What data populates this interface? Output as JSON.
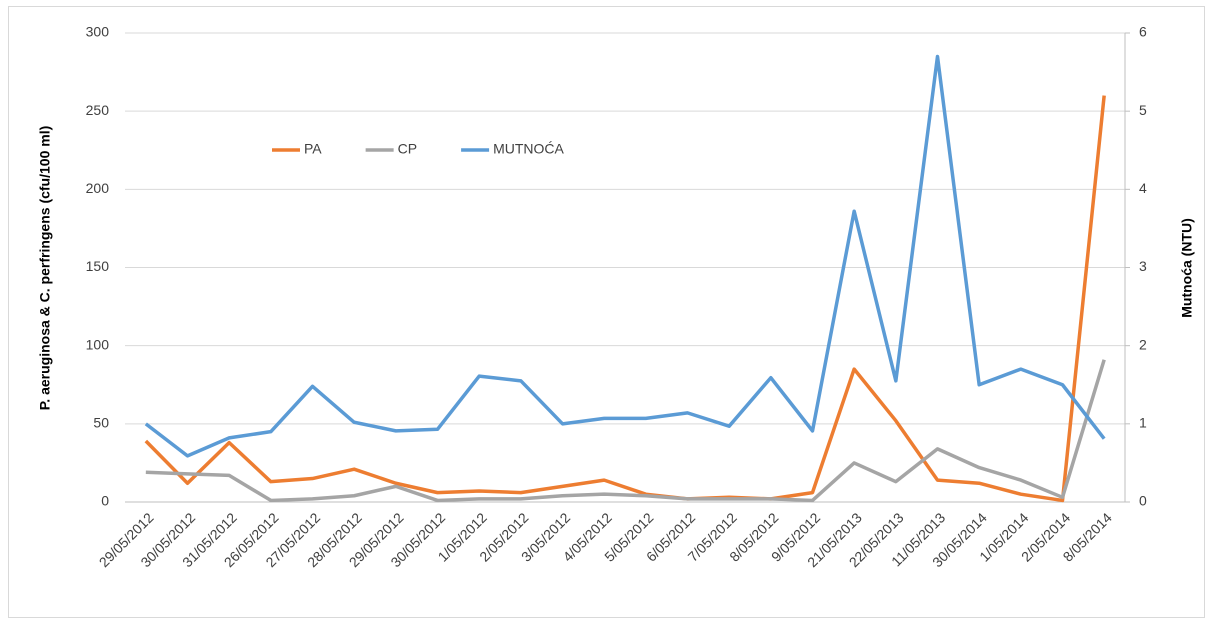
{
  "chart_data": {
    "type": "line",
    "y_label": "P. aeruginosa  & C. perfringens (cfu/100 ml)",
    "y2_label": "Mutnoća  (NTU)",
    "categories": [
      "29/05/2012",
      "30/05/2012",
      "31/05/2012",
      "26/05/2012",
      "27/05/2012",
      "28/05/2012",
      "29/05/2012",
      "30/05/2012",
      "1/05/2012",
      "2/05/2012",
      "3/05/2012",
      "4/05/2012",
      "5/05/2012",
      "6/05/2012",
      "7/05/2012",
      "8/05/2012",
      "9/05/2012",
      "21/05/2013",
      "22/05/2013",
      "11/05/2013",
      "30/05/2014",
      "1/05/2014",
      "2/05/2014",
      "8/05/2014"
    ],
    "series": [
      {
        "name": "PA",
        "color": "#ed7d31",
        "values": [
          39,
          12,
          38,
          13,
          15,
          21,
          12,
          6,
          7,
          6,
          10,
          14,
          5,
          2,
          3,
          2,
          6,
          85,
          52,
          14,
          12,
          5,
          1,
          260
        ]
      },
      {
        "name": "CP",
        "color": "#a5a5a5",
        "values": [
          19,
          18,
          17,
          1,
          2,
          4,
          10,
          1,
          2,
          2,
          4,
          5,
          4,
          2,
          2,
          2,
          1,
          25,
          13,
          34,
          22,
          14,
          3,
          91
        ]
      },
      {
        "name": "MUTNOĆA",
        "color": "#5b9bd5",
        "axis": "y2",
        "values": [
          1.0,
          0.59,
          0.82,
          0.9,
          1.48,
          1.02,
          0.91,
          0.93,
          1.61,
          1.55,
          1.0,
          1.07,
          1.07,
          1.14,
          0.97,
          1.59,
          0.91,
          3.72,
          1.55,
          5.7,
          1.5,
          1.7,
          1.5,
          0.81
        ]
      }
    ],
    "ylim": [
      0,
      300
    ],
    "yticks": [
      0,
      50,
      100,
      150,
      200,
      250,
      300
    ],
    "y2lim": [
      0,
      6
    ],
    "y2ticks": [
      0,
      1,
      2,
      3,
      4,
      5,
      6
    ],
    "grid": true,
    "legend": "upper left"
  }
}
